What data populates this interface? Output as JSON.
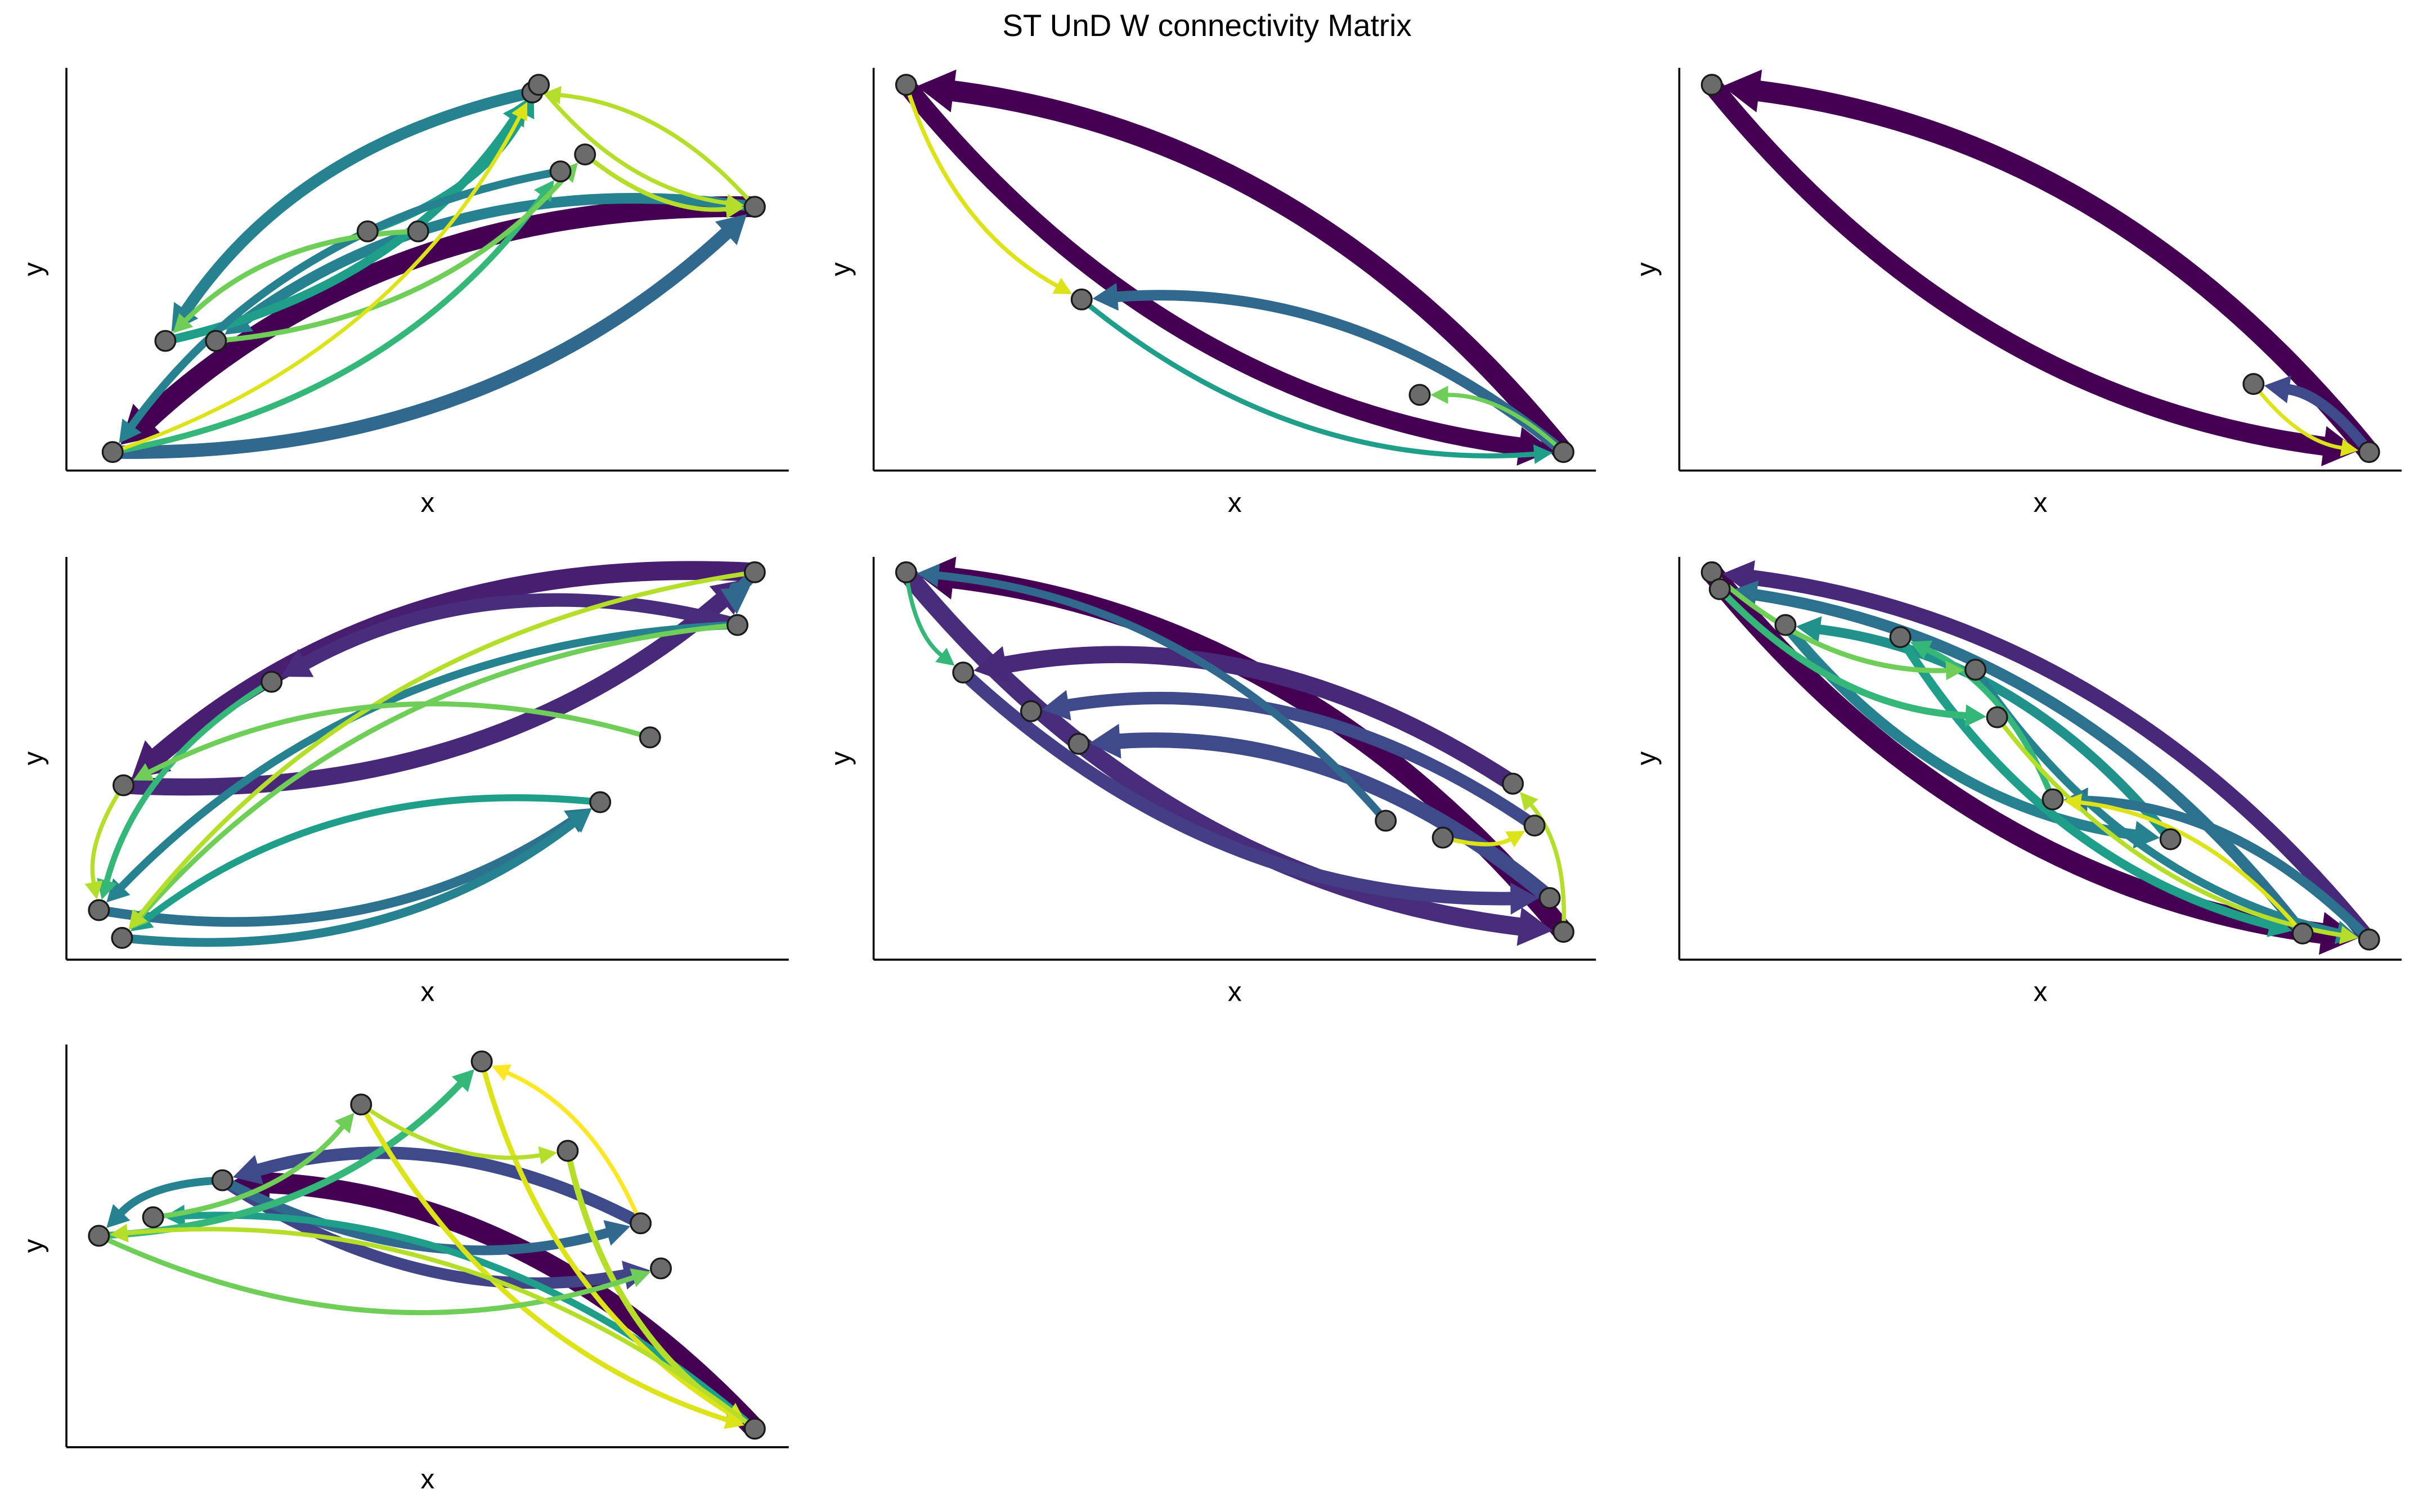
{
  "title": "ST UnD W connectivity Matrix",
  "chart_data": [
    {
      "type": "network",
      "xlabel": "x",
      "ylabel": "y",
      "xlim": [
        0,
        1
      ],
      "ylim": [
        0,
        1
      ],
      "nodes": {
        "x": [
          0.064,
          0.137,
          0.207,
          0.417,
          0.487,
          0.645,
          0.654,
          0.684,
          0.718,
          0.953
        ],
        "y": [
          0.046,
          0.322,
          0.322,
          0.594,
          0.594,
          0.939,
          0.958,
          0.743,
          0.785,
          0.655
        ]
      },
      "edges": [
        {
          "source": 9,
          "target": 0,
          "weight": 1,
          "color": "#440154"
        },
        {
          "source": 0,
          "target": 9,
          "weight": 0.6,
          "color": "#31688e"
        },
        {
          "source": 5,
          "target": 1,
          "weight": 0.5,
          "color": "#26828e"
        },
        {
          "source": 9,
          "target": 2,
          "weight": 0.45,
          "color": "#26828e"
        },
        {
          "source": 1,
          "target": 5,
          "weight": 0.35,
          "color": "#1f9e89"
        },
        {
          "source": 3,
          "target": 6,
          "weight": 0.3,
          "color": "#1f9e89"
        },
        {
          "source": 7,
          "target": 0,
          "weight": 0.3,
          "color": "#26828e"
        },
        {
          "source": 0,
          "target": 7,
          "weight": 0.2,
          "color": "#35b779"
        },
        {
          "source": 2,
          "target": 8,
          "weight": 0.15,
          "color": "#6ece58"
        },
        {
          "source": 8,
          "target": 9,
          "weight": 0.12,
          "color": "#b5de2b"
        },
        {
          "source": 6,
          "target": 9,
          "weight": 0.1,
          "color": "#b5de2b"
        },
        {
          "source": 0,
          "target": 5,
          "weight": 0.08,
          "color": "#dce319"
        },
        {
          "source": 4,
          "target": 1,
          "weight": 0.15,
          "color": "#6ece58"
        },
        {
          "source": 9,
          "target": 5,
          "weight": 0.1,
          "color": "#b5de2b"
        }
      ]
    },
    {
      "type": "network",
      "xlabel": "x",
      "ylabel": "y",
      "xlim": [
        0,
        1
      ],
      "ylim": [
        0,
        1
      ],
      "nodes": {
        "x": [
          0.045,
          0.288,
          0.756,
          0.955
        ],
        "y": [
          0.958,
          0.425,
          0.188,
          0.046
        ]
      },
      "edges": [
        {
          "source": 3,
          "target": 0,
          "weight": 1,
          "color": "#440154"
        },
        {
          "source": 0,
          "target": 3,
          "weight": 0.85,
          "color": "#440154"
        },
        {
          "source": 3,
          "target": 1,
          "weight": 0.45,
          "color": "#31688e"
        },
        {
          "source": 1,
          "target": 3,
          "weight": 0.15,
          "color": "#1f9e89"
        },
        {
          "source": 0,
          "target": 1,
          "weight": 0.1,
          "color": "#dce319"
        },
        {
          "source": 3,
          "target": 2,
          "weight": 0.1,
          "color": "#6ece58"
        }
      ]
    },
    {
      "type": "network",
      "xlabel": "x",
      "ylabel": "y",
      "xlim": [
        0,
        1
      ],
      "ylim": [
        0,
        1
      ],
      "nodes": {
        "x": [
          0.045,
          0.795,
          0.955
        ],
        "y": [
          0.958,
          0.215,
          0.046
        ]
      },
      "edges": [
        {
          "source": 2,
          "target": 0,
          "weight": 1,
          "color": "#440154"
        },
        {
          "source": 0,
          "target": 2,
          "weight": 0.9,
          "color": "#440154"
        },
        {
          "source": 2,
          "target": 1,
          "weight": 0.45,
          "color": "#3e4a89"
        },
        {
          "source": 1,
          "target": 2,
          "weight": 0.08,
          "color": "#dce319"
        }
      ]
    },
    {
      "type": "network",
      "xlabel": "x",
      "ylabel": "y",
      "xlim": [
        0,
        1
      ],
      "ylim": [
        0,
        1
      ],
      "nodes": {
        "x": [
          0.953,
          0.929,
          0.284,
          0.079,
          0.808,
          0.739,
          0.045,
          0.077
        ],
        "y": [
          0.962,
          0.831,
          0.69,
          0.433,
          0.552,
          0.391,
          0.123,
          0.054
        ]
      },
      "edges": [
        {
          "source": 0,
          "target": 3,
          "weight": 0.9,
          "color": "#481f70"
        },
        {
          "source": 3,
          "target": 0,
          "weight": 0.8,
          "color": "#482878"
        },
        {
          "source": 1,
          "target": 2,
          "weight": 0.6,
          "color": "#472d7b"
        },
        {
          "source": 0,
          "target": 1,
          "weight": 0.5,
          "color": "#31688e"
        },
        {
          "source": 6,
          "target": 5,
          "weight": 0.4,
          "color": "#2c728e"
        },
        {
          "source": 7,
          "target": 5,
          "weight": 0.35,
          "color": "#26828e"
        },
        {
          "source": 1,
          "target": 6,
          "weight": 0.3,
          "color": "#26828e"
        },
        {
          "source": 5,
          "target": 7,
          "weight": 0.25,
          "color": "#1f9e89"
        },
        {
          "source": 2,
          "target": 6,
          "weight": 0.2,
          "color": "#35b779"
        },
        {
          "source": 1,
          "target": 7,
          "weight": 0.15,
          "color": "#6ece58"
        },
        {
          "source": 0,
          "target": 7,
          "weight": 0.12,
          "color": "#b5de2b"
        },
        {
          "source": 4,
          "target": 3,
          "weight": 0.15,
          "color": "#6ece58"
        },
        {
          "source": 3,
          "target": 6,
          "weight": 0.1,
          "color": "#b5de2b"
        }
      ]
    },
    {
      "type": "network",
      "xlabel": "x",
      "ylabel": "y",
      "xlim": [
        0,
        1
      ],
      "ylim": [
        0,
        1
      ],
      "nodes": {
        "x": [
          0.045,
          0.124,
          0.218,
          0.284,
          0.709,
          0.788,
          0.885,
          0.915,
          0.936,
          0.955
        ],
        "y": [
          0.962,
          0.713,
          0.617,
          0.536,
          0.345,
          0.303,
          0.437,
          0.333,
          0.153,
          0.069
        ]
      },
      "edges": [
        {
          "source": 9,
          "target": 0,
          "weight": 1,
          "color": "#440154"
        },
        {
          "source": 0,
          "target": 9,
          "weight": 0.85,
          "color": "#472d7b"
        },
        {
          "source": 6,
          "target": 1,
          "weight": 0.8,
          "color": "#482878"
        },
        {
          "source": 8,
          "target": 3,
          "weight": 0.7,
          "color": "#3e4a89"
        },
        {
          "source": 1,
          "target": 8,
          "weight": 0.6,
          "color": "#433e85"
        },
        {
          "source": 7,
          "target": 2,
          "weight": 0.55,
          "color": "#3e4a89"
        },
        {
          "source": 4,
          "target": 0,
          "weight": 0.3,
          "color": "#31688e"
        },
        {
          "source": 0,
          "target": 1,
          "weight": 0.1,
          "color": "#35b779"
        },
        {
          "source": 9,
          "target": 6,
          "weight": 0.1,
          "color": "#b5de2b"
        },
        {
          "source": 5,
          "target": 7,
          "weight": 0.1,
          "color": "#dce319"
        }
      ]
    },
    {
      "type": "network",
      "xlabel": "x",
      "ylabel": "y",
      "xlim": [
        0,
        1
      ],
      "ylim": [
        0,
        1
      ],
      "nodes": {
        "x": [
          0.045,
          0.056,
          0.147,
          0.306,
          0.41,
          0.44,
          0.517,
          0.68,
          0.863,
          0.955
        ],
        "y": [
          0.962,
          0.92,
          0.831,
          0.801,
          0.72,
          0.602,
          0.398,
          0.299,
          0.065,
          0.05
        ]
      },
      "edges": [
        {
          "source": 0,
          "target": 9,
          "weight": 1,
          "color": "#440154"
        },
        {
          "source": 9,
          "target": 0,
          "weight": 0.7,
          "color": "#482878"
        },
        {
          "source": 8,
          "target": 1,
          "weight": 0.5,
          "color": "#2c728e"
        },
        {
          "source": 2,
          "target": 7,
          "weight": 0.45,
          "color": "#26828e"
        },
        {
          "source": 7,
          "target": 2,
          "weight": 0.4,
          "color": "#21918c"
        },
        {
          "source": 9,
          "target": 6,
          "weight": 0.4,
          "color": "#2c728e"
        },
        {
          "source": 3,
          "target": 8,
          "weight": 0.35,
          "color": "#1f9e89"
        },
        {
          "source": 4,
          "target": 9,
          "weight": 0.3,
          "color": "#26828e"
        },
        {
          "source": 1,
          "target": 5,
          "weight": 0.25,
          "color": "#35b779"
        },
        {
          "source": 6,
          "target": 3,
          "weight": 0.2,
          "color": "#35b779"
        },
        {
          "source": 0,
          "target": 4,
          "weight": 0.15,
          "color": "#6ece58"
        },
        {
          "source": 5,
          "target": 9,
          "weight": 0.12,
          "color": "#b5de2b"
        },
        {
          "source": 8,
          "target": 6,
          "weight": 0.1,
          "color": "#dce319"
        }
      ]
    },
    {
      "type": "network",
      "xlabel": "x",
      "ylabel": "y",
      "xlim": [
        0,
        1
      ],
      "ylim": [
        0,
        1
      ],
      "nodes": {
        "x": [
          0.045,
          0.12,
          0.216,
          0.408,
          0.575,
          0.694,
          0.795,
          0.823,
          0.953
        ],
        "y": [
          0.525,
          0.571,
          0.663,
          0.851,
          0.958,
          0.736,
          0.556,
          0.444,
          0.046
        ]
      },
      "edges": [
        {
          "source": 8,
          "target": 2,
          "weight": 1,
          "color": "#440154"
        },
        {
          "source": 6,
          "target": 2,
          "weight": 0.55,
          "color": "#3e4a89"
        },
        {
          "source": 2,
          "target": 7,
          "weight": 0.5,
          "color": "#414487"
        },
        {
          "source": 2,
          "target": 6,
          "weight": 0.4,
          "color": "#31688e"
        },
        {
          "source": 2,
          "target": 0,
          "weight": 0.3,
          "color": "#26828e"
        },
        {
          "source": 8,
          "target": 1,
          "weight": 0.25,
          "color": "#1f9e89"
        },
        {
          "source": 0,
          "target": 4,
          "weight": 0.25,
          "color": "#35b779"
        },
        {
          "source": 5,
          "target": 8,
          "weight": 0.2,
          "color": "#b5de2b"
        },
        {
          "source": 3,
          "target": 8,
          "weight": 0.15,
          "color": "#dce319"
        },
        {
          "source": 4,
          "target": 8,
          "weight": 0.15,
          "color": "#dce319"
        },
        {
          "source": 1,
          "target": 3,
          "weight": 0.15,
          "color": "#6ece58"
        },
        {
          "source": 0,
          "target": 7,
          "weight": 0.15,
          "color": "#6ece58"
        },
        {
          "source": 8,
          "target": 0,
          "weight": 0.12,
          "color": "#b5de2b"
        },
        {
          "source": 6,
          "target": 4,
          "weight": 0.1,
          "color": "#fde725"
        },
        {
          "source": 3,
          "target": 5,
          "weight": 0.1,
          "color": "#b5de2b"
        }
      ]
    }
  ]
}
